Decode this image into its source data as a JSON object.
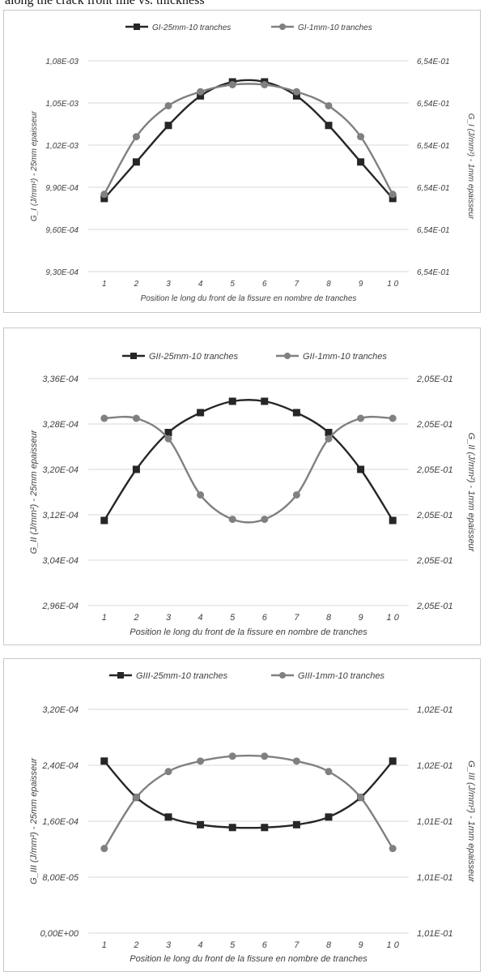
{
  "caption": "along the crack front line vs. thickness",
  "colors": {
    "series_25mm": "#262626",
    "series_1mm": "#808080",
    "grid": "#d9d9d9",
    "axis_text": "#404040"
  },
  "chart_data": [
    {
      "type": "line",
      "categories": [
        "1",
        "2",
        "3",
        "4",
        "5",
        "6",
        "7",
        "8",
        "9",
        "1 0"
      ],
      "xlabel": "Position le long du front de la fissure en nombre de tranches",
      "ylabel": "G_I (J/mm²) - 25mm epaisseur",
      "y2label": "G_I (J/mm²) - 1mm epaisseur",
      "yticks": [
        "9,30E-04",
        "9,60E-04",
        "9,90E-04",
        "1,02E-03",
        "1,05E-03",
        "1,08E-03"
      ],
      "y2ticks": [
        "6,54E-01",
        "6,54E-01",
        "6,54E-01",
        "6,54E-01",
        "6,54E-01",
        "6,54E-01"
      ],
      "ylim": [
        0.00093,
        0.00108
      ],
      "legend_position": "top",
      "grid": true,
      "series": [
        {
          "name": "GI-25mm-10 tranches",
          "marker": "square",
          "axis": "left",
          "values": [
            0.000982,
            0.001008,
            0.001034,
            0.001055,
            0.001065,
            0.001065,
            0.001055,
            0.001034,
            0.001008,
            0.000982
          ]
        },
        {
          "name": "GI-1mm-10 tranches",
          "marker": "circle",
          "axis": "left",
          "values": [
            0.000985,
            0.001026,
            0.001048,
            0.001058,
            0.001063,
            0.001063,
            0.001058,
            0.001048,
            0.001026,
            0.000985
          ]
        }
      ]
    },
    {
      "type": "line",
      "categories": [
        "1",
        "2",
        "3",
        "4",
        "5",
        "6",
        "7",
        "8",
        "9",
        "1 0"
      ],
      "xlabel": "Position le long du front de la fissure en nombre de tranches",
      "ylabel": "G_II (J/mm²) - 25mm epaisseur",
      "y2label": "G_II (J/mm²) - 1mm epaisseur",
      "yticks": [
        "2,96E-04",
        "3,04E-04",
        "3,12E-04",
        "3,20E-04",
        "3,28E-04",
        "3,36E-04"
      ],
      "y2ticks": [
        "2,05E-01",
        "2,05E-01",
        "2,05E-01",
        "2,05E-01",
        "2,05E-01",
        "2,05E-01"
      ],
      "ylim": [
        0.000296,
        0.000336
      ],
      "legend_position": "top",
      "grid": true,
      "series": [
        {
          "name": "GII-25mm-10 tranches",
          "marker": "square",
          "axis": "left",
          "values": [
            0.000311,
            0.00032,
            0.0003265,
            0.00033,
            0.000332,
            0.000332,
            0.00033,
            0.0003265,
            0.00032,
            0.000311
          ]
        },
        {
          "name": "GII-1mm-10 tranches",
          "marker": "circle",
          "axis": "left",
          "values": [
            0.000329,
            0.000329,
            0.0003254,
            0.0003155,
            0.0003112,
            0.0003112,
            0.0003155,
            0.0003254,
            0.000329,
            0.000329
          ]
        }
      ]
    },
    {
      "type": "line",
      "categories": [
        "1",
        "2",
        "3",
        "4",
        "5",
        "6",
        "7",
        "8",
        "9",
        "1 0"
      ],
      "xlabel": "Position le long du front de la fissure en nombre de tranches",
      "ylabel": "G_III (J/mm²) - 25mm epaisseur",
      "y2label": "G_III (J/mm²) - 1mm epaisseur",
      "yticks": [
        "0,00E+00",
        "8,00E-05",
        "1,60E-04",
        "2,40E-04",
        "3,20E-04"
      ],
      "y2ticks": [
        "1,01E-01",
        "1,01E-01",
        "1,01E-01",
        "1,02E-01",
        "1,02E-01"
      ],
      "ylim": [
        0,
        0.00032
      ],
      "legend_position": "top",
      "grid": true,
      "series": [
        {
          "name": "GIII-25mm-10 tranches",
          "marker": "square",
          "axis": "left",
          "values": [
            0.000246,
            0.000194,
            0.000166,
            0.000155,
            0.000151,
            0.000151,
            0.000155,
            0.000166,
            0.000194,
            0.000246
          ]
        },
        {
          "name": "GIII-1mm-10 tranches",
          "marker": "circle",
          "axis": "left",
          "values": [
            0.000121,
            0.000194,
            0.000231,
            0.000246,
            0.000253,
            0.000253,
            0.000246,
            0.000231,
            0.000194,
            0.000121
          ]
        }
      ]
    }
  ]
}
